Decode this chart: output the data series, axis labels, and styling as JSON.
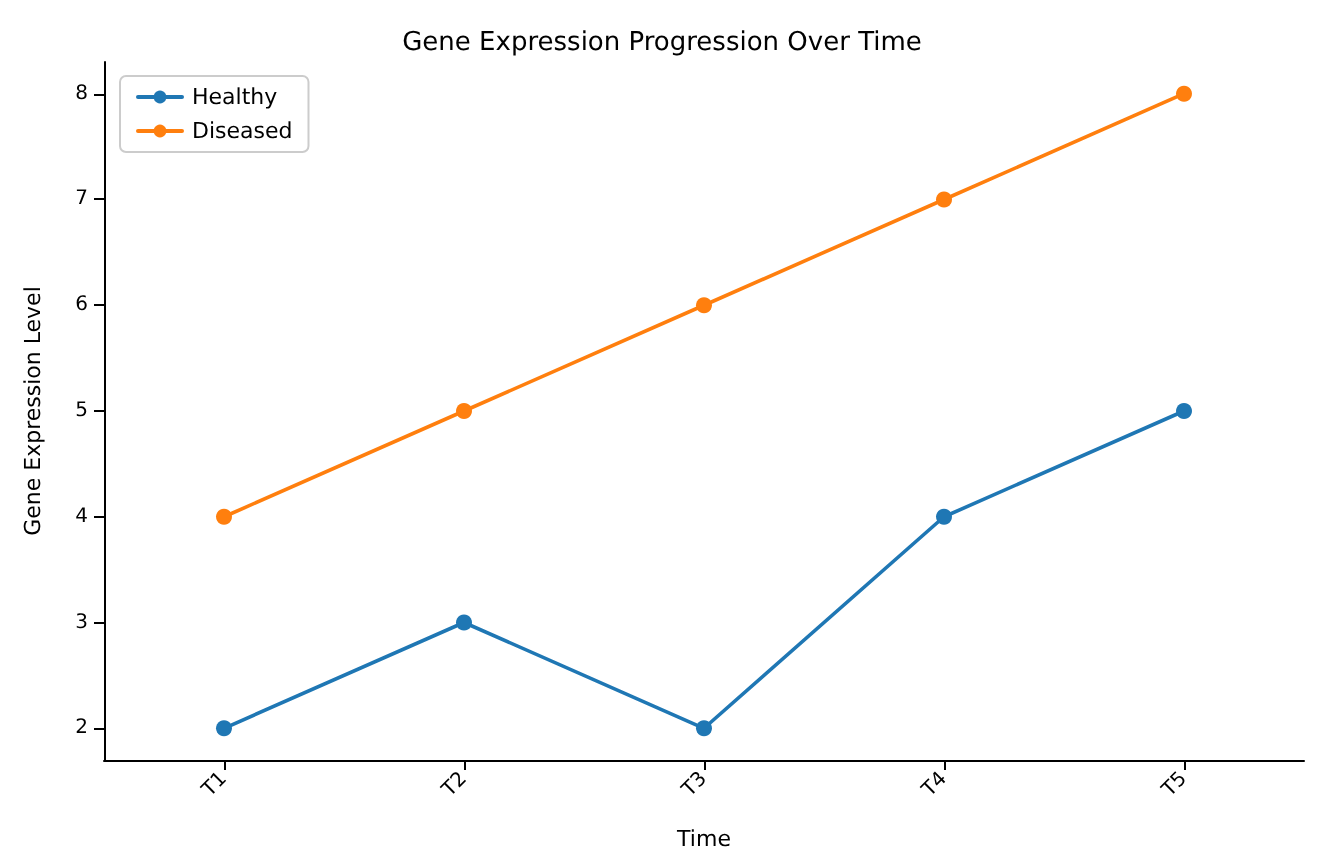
{
  "chart_data": {
    "type": "line",
    "title": "Gene Expression Progression Over Time",
    "xlabel": "Time",
    "ylabel": "Gene Expression Level",
    "categories": [
      "T1",
      "T2",
      "T3",
      "T4",
      "T5"
    ],
    "series": [
      {
        "name": "Healthy",
        "color": "#1f77b4",
        "values": [
          2,
          3,
          2,
          4,
          5
        ]
      },
      {
        "name": "Diseased",
        "color": "#ff7f0e",
        "values": [
          4,
          5,
          6,
          7,
          8
        ]
      }
    ],
    "ylim": [
      1.7,
      8.3
    ],
    "yticks": [
      2,
      3,
      4,
      5,
      6,
      7,
      8
    ],
    "grid": false,
    "legend": "top left",
    "marker": "circle",
    "line_style": "solid"
  }
}
